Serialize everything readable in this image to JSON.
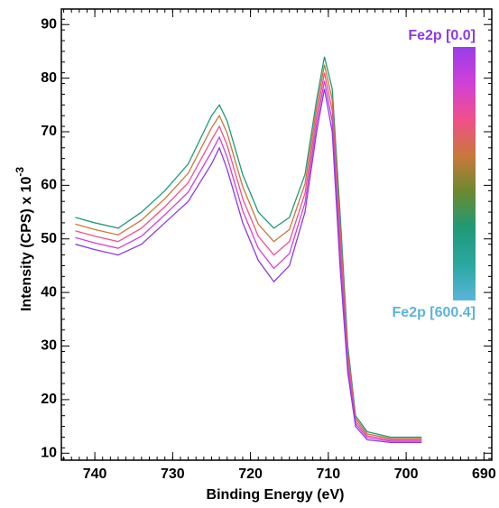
{
  "chart_data": {
    "type": "line",
    "x_label": "Binding Energy (eV)",
    "y_label": "Intensity (CPS) x 10",
    "y_label_exponent": "-3",
    "xlim": [
      744.3,
      689
    ],
    "ylim": [
      8.7,
      92.9
    ],
    "xticks": [
      740,
      730,
      720,
      710,
      700,
      690
    ],
    "yticks": [
      10,
      20,
      30,
      40,
      50,
      60,
      70,
      80,
      90
    ],
    "x": [
      742.5,
      740,
      737,
      734,
      731,
      728,
      725,
      724,
      723,
      721,
      719,
      717,
      715,
      713,
      711.5,
      710.5,
      709.5,
      708.5,
      707.5,
      706.5,
      705,
      702,
      698
    ],
    "series": [
      {
        "color": "#1f9a78",
        "values": [
          54,
          53,
          52,
          55,
          59,
          64,
          73,
          75,
          72,
          62,
          55,
          52,
          54,
          62,
          76,
          84,
          78,
          55,
          30,
          17,
          14,
          13,
          13
        ]
      },
      {
        "color": "#c8783a",
        "values": [
          52.75,
          51.75,
          50.75,
          53.5,
          57.5,
          62.25,
          70.75,
          73,
          69.75,
          59.75,
          52.75,
          49.5,
          51.75,
          60.25,
          74.5,
          82.5,
          76,
          52.5,
          28.75,
          16.5,
          13.6,
          12.75,
          12.75
        ]
      },
      {
        "color": "#f0508a",
        "values": [
          51.5,
          50.5,
          49.5,
          52,
          56,
          60.5,
          68.5,
          71,
          67.5,
          57.5,
          50.5,
          47,
          49.5,
          58.5,
          73,
          81,
          74,
          50,
          27.5,
          16,
          13.25,
          12.5,
          12.5
        ]
      },
      {
        "color": "#d040d8",
        "values": [
          50.25,
          49.25,
          48.25,
          50.5,
          54.5,
          58.75,
          66.25,
          69,
          65.25,
          55.25,
          48.25,
          44.5,
          47.25,
          56.75,
          71.5,
          79.5,
          72,
          47.5,
          26.25,
          15.5,
          12.9,
          12.25,
          12.25
        ]
      },
      {
        "color": "#8a3ae8",
        "values": [
          49,
          48,
          47,
          49,
          53,
          57,
          64,
          67,
          63,
          53,
          46,
          42,
          45,
          55,
          70,
          78,
          70,
          45,
          25,
          15,
          12.5,
          12,
          12
        ]
      }
    ],
    "colorbar": {
      "top_label": "Fe2p [0.0]",
      "bottom_label": "Fe2p [600.4]",
      "top_color": "#8a3ae8",
      "bottom_color": "#5ab4dc",
      "colors": [
        "#9a3ee8",
        "#d040d8",
        "#f0508a",
        "#c8783a",
        "#6a8a30",
        "#1f9a78",
        "#2aa8a0",
        "#5ab4dc"
      ]
    }
  }
}
